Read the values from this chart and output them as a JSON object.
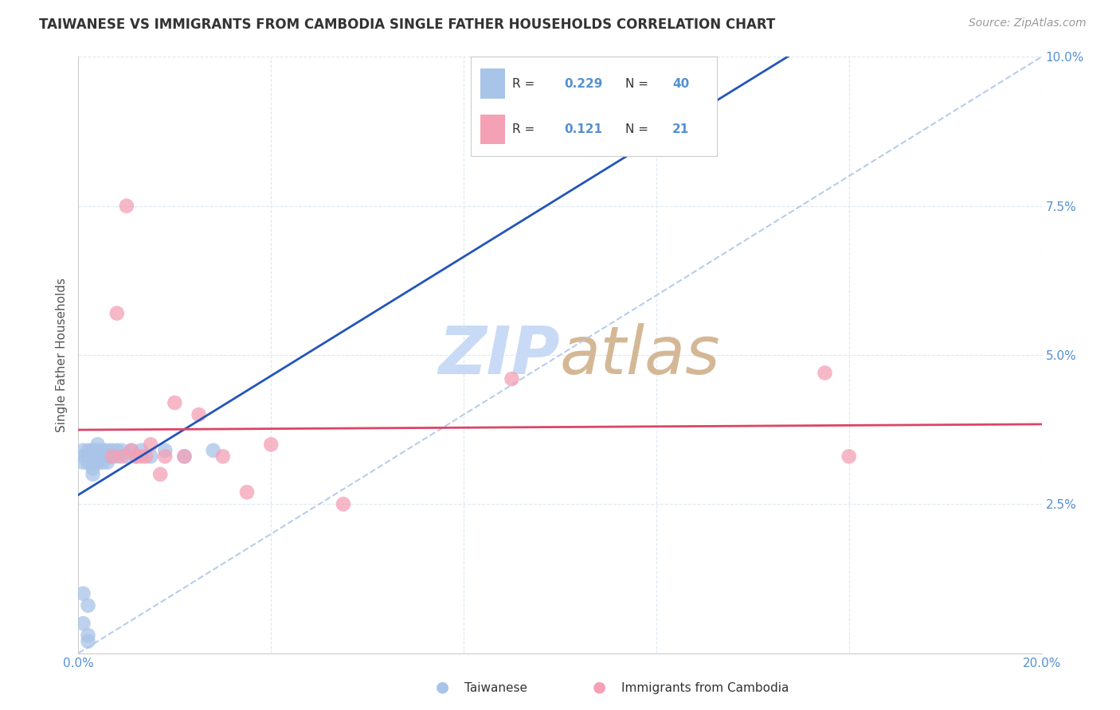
{
  "title": "TAIWANESE VS IMMIGRANTS FROM CAMBODIA SINGLE FATHER HOUSEHOLDS CORRELATION CHART",
  "source": "Source: ZipAtlas.com",
  "ylabel": "Single Father Households",
  "xlim": [
    0.0,
    0.2
  ],
  "ylim": [
    0.0,
    0.1
  ],
  "taiwanese_color": "#a8c4e8",
  "cambodian_color": "#f4a0b5",
  "taiwanese_line_color": "#2255bb",
  "cambodian_line_color": "#dd4466",
  "dashed_line_color": "#b0c8e8",
  "watermark_zip_color": "#c8daf0",
  "watermark_atlas_color": "#d8bca0",
  "background_color": "#ffffff",
  "grid_color": "#dde8f0",
  "tick_color": "#5590d0",
  "label_color": "#555555",
  "title_color": "#333333",
  "source_color": "#999999",
  "R_taiwanese": 0.229,
  "N_taiwanese": 40,
  "R_cambodian": 0.121,
  "N_cambodian": 21,
  "tw_x": [
    0.001,
    0.002,
    0.002,
    0.002,
    0.003,
    0.003,
    0.003,
    0.004,
    0.004,
    0.004,
    0.004,
    0.005,
    0.005,
    0.005,
    0.005,
    0.006,
    0.006,
    0.006,
    0.006,
    0.006,
    0.007,
    0.007,
    0.007,
    0.007,
    0.007,
    0.008,
    0.008,
    0.008,
    0.009,
    0.009,
    0.009,
    0.01,
    0.01,
    0.011,
    0.011,
    0.012,
    0.013,
    0.015,
    0.018,
    0.022
  ],
  "tw_y": [
    0.033,
    0.033,
    0.035,
    0.034,
    0.033,
    0.032,
    0.034,
    0.033,
    0.034,
    0.035,
    0.034,
    0.033,
    0.034,
    0.034,
    0.033,
    0.033,
    0.034,
    0.034,
    0.035,
    0.034,
    0.033,
    0.034,
    0.034,
    0.033,
    0.035,
    0.034,
    0.033,
    0.035,
    0.033,
    0.034,
    0.034,
    0.033,
    0.035,
    0.033,
    0.035,
    0.034,
    0.033,
    0.034,
    0.035,
    0.033
  ],
  "cam_x": [
    0.005,
    0.007,
    0.008,
    0.009,
    0.01,
    0.011,
    0.012,
    0.013,
    0.014,
    0.015,
    0.016,
    0.018,
    0.02,
    0.022,
    0.025,
    0.03,
    0.035,
    0.04,
    0.055,
    0.09,
    0.155
  ],
  "cam_y": [
    0.033,
    0.03,
    0.057,
    0.033,
    0.075,
    0.033,
    0.034,
    0.03,
    0.033,
    0.035,
    0.03,
    0.035,
    0.042,
    0.033,
    0.04,
    0.033,
    0.027,
    0.033,
    0.025,
    0.046,
    0.047
  ]
}
